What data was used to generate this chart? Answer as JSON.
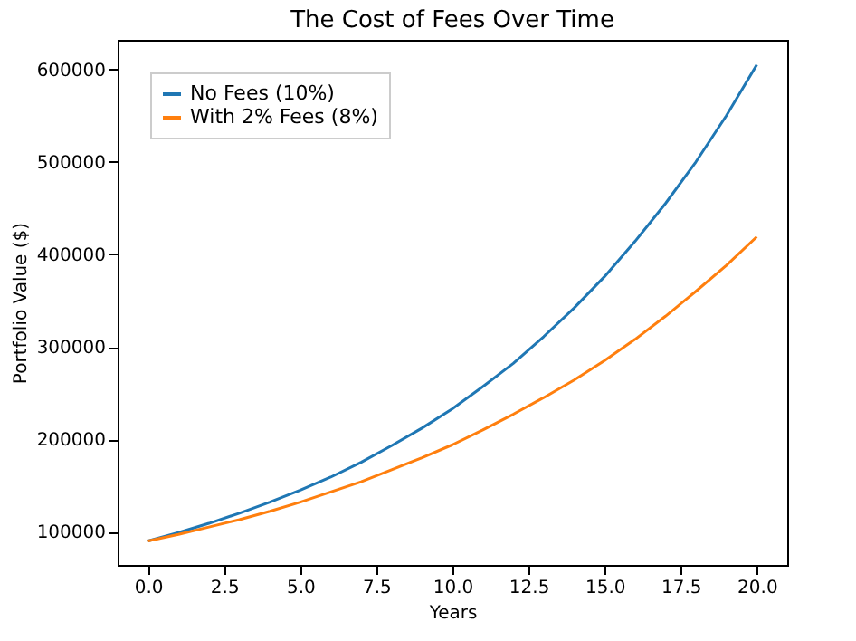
{
  "chart_data": {
    "type": "line",
    "title": "The Cost of Fees Over Time",
    "xlabel": "Years",
    "ylabel": "Portfolio Value ($)",
    "x": [
      0,
      1,
      2,
      3,
      4,
      5,
      6,
      7,
      8,
      9,
      10,
      11,
      12,
      13,
      14,
      15,
      16,
      17,
      18,
      19,
      20
    ],
    "series": [
      {
        "name": "No Fees (10%)",
        "color": "#1f77b4",
        "values": [
          90000,
          99000,
          109000,
          120000,
          132000,
          145000,
          159000,
          175000,
          193000,
          212000,
          233000,
          257000,
          282000,
          311000,
          342000,
          376000,
          414000,
          455000,
          500000,
          550000,
          605000
        ]
      },
      {
        "name": "With 2% Fees (8%)",
        "color": "#ff7f0e",
        "values": [
          90000,
          97000,
          105000,
          113000,
          122000,
          132000,
          143000,
          154000,
          167000,
          180000,
          194000,
          210000,
          227000,
          245000,
          264000,
          285000,
          308000,
          333000,
          360000,
          388000,
          419000
        ]
      }
    ],
    "xlim": [
      -1,
      21
    ],
    "ylim": [
      64000,
      632000
    ],
    "xticks": [
      {
        "value": 0,
        "label": "0.0"
      },
      {
        "value": 2.5,
        "label": "2.5"
      },
      {
        "value": 5,
        "label": "5.0"
      },
      {
        "value": 7.5,
        "label": "7.5"
      },
      {
        "value": 10,
        "label": "10.0"
      },
      {
        "value": 12.5,
        "label": "12.5"
      },
      {
        "value": 15,
        "label": "15.0"
      },
      {
        "value": 17.5,
        "label": "17.5"
      },
      {
        "value": 20,
        "label": "20.0"
      }
    ],
    "yticks": [
      100000,
      200000,
      300000,
      400000,
      500000,
      600000
    ],
    "legend": "top left",
    "grid": false,
    "marker": "none",
    "line_style": "solid"
  }
}
